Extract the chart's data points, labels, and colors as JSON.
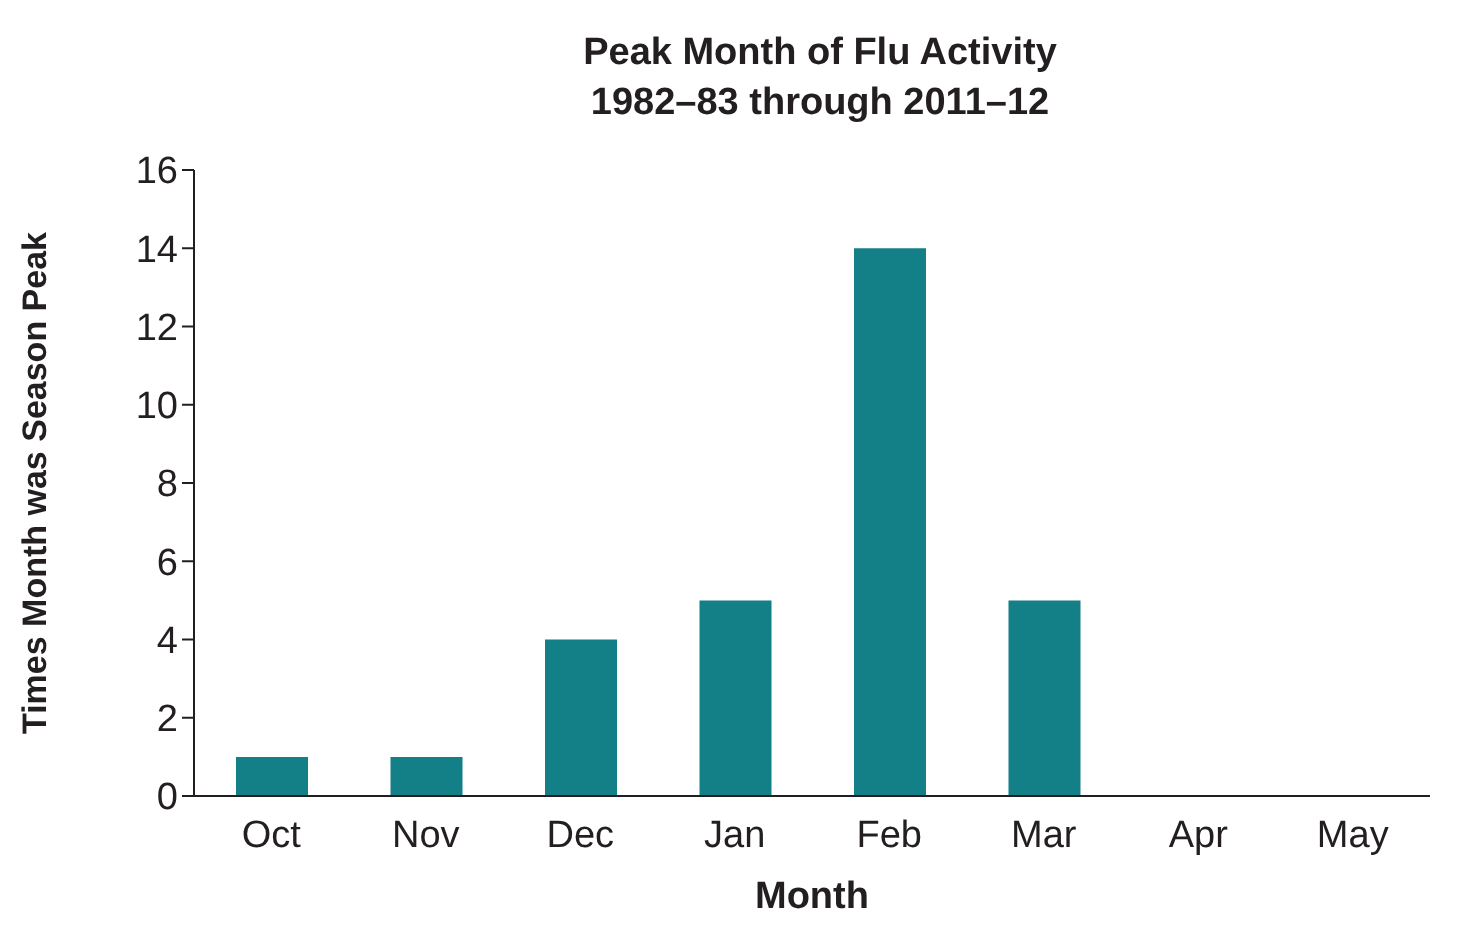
{
  "chart_data": {
    "type": "bar",
    "title": "Peak Month of Flu Activity",
    "subtitle": "1982–83 through 2011–12",
    "xlabel": "Month",
    "ylabel": "Times Month was Season Peak",
    "categories": [
      "Oct",
      "Nov",
      "Dec",
      "Jan",
      "Feb",
      "Mar",
      "Apr",
      "May"
    ],
    "values": [
      1,
      1,
      4,
      5,
      14,
      5,
      0,
      0
    ],
    "color": "#137f86",
    "ylim": [
      0,
      16
    ],
    "yticks": [
      0,
      2,
      4,
      6,
      8,
      10,
      12,
      14,
      16
    ],
    "grid": false
  }
}
